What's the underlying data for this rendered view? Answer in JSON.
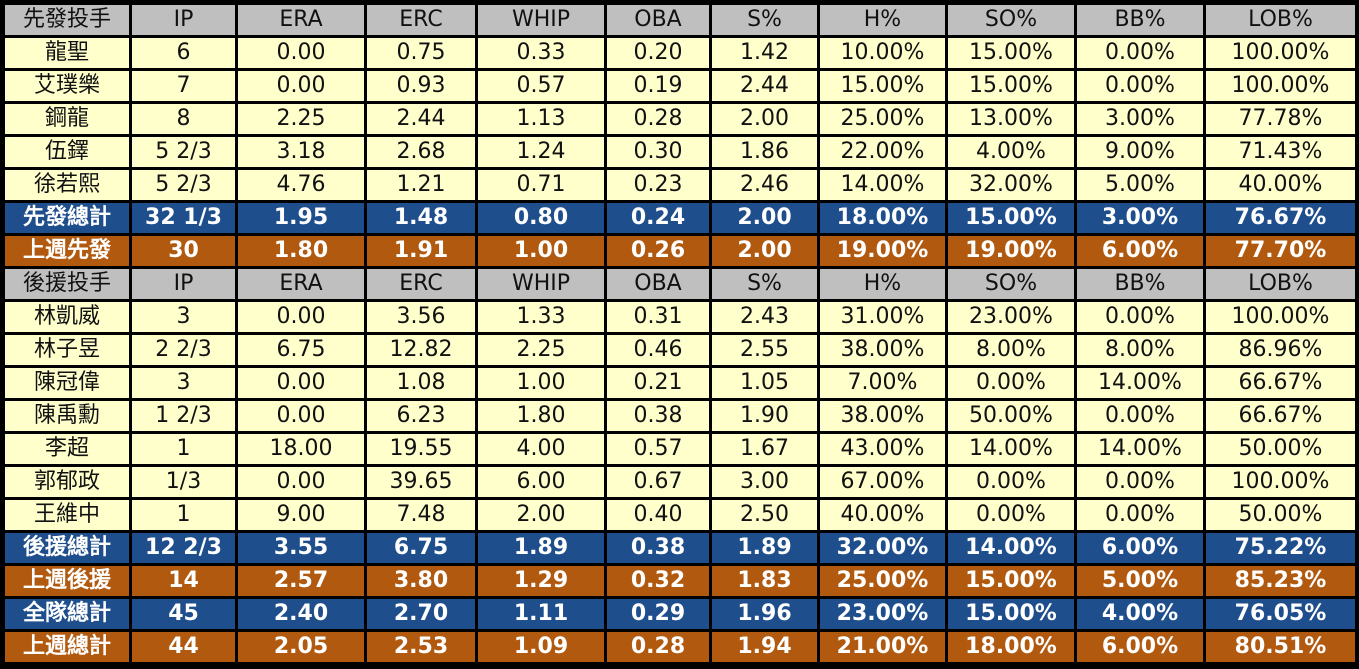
{
  "colors": {
    "header_bg": "#bfbfbf",
    "data_bg": "#ffffcc",
    "total_bg": "#1f4e8c",
    "last_week_bg": "#b15a0f",
    "frame": "#000000"
  },
  "table": {
    "rows": [
      {
        "type": "hdr",
        "cells": [
          "先發投手",
          "IP",
          "ERA",
          "ERC",
          "WHIP",
          "OBA",
          "S%",
          "H%",
          "SO%",
          "BB%",
          "LOB%"
        ]
      },
      {
        "type": "dat",
        "cells": [
          "龍聖",
          "6",
          "0.00",
          "0.75",
          "0.33",
          "0.20",
          "1.42",
          "10.00%",
          "15.00%",
          "0.00%",
          "100.00%"
        ]
      },
      {
        "type": "dat",
        "cells": [
          "艾璞樂",
          "7",
          "0.00",
          "0.93",
          "0.57",
          "0.19",
          "2.44",
          "15.00%",
          "15.00%",
          "0.00%",
          "100.00%"
        ]
      },
      {
        "type": "dat",
        "cells": [
          "鋼龍",
          "8",
          "2.25",
          "2.44",
          "1.13",
          "0.28",
          "2.00",
          "25.00%",
          "13.00%",
          "3.00%",
          "77.78%"
        ]
      },
      {
        "type": "dat",
        "cells": [
          "伍鐸",
          "5 2/3",
          "3.18",
          "2.68",
          "1.24",
          "0.30",
          "1.86",
          "22.00%",
          "4.00%",
          "9.00%",
          "71.43%"
        ]
      },
      {
        "type": "dat",
        "cells": [
          "徐若熙",
          "5 2/3",
          "4.76",
          "1.21",
          "0.71",
          "0.23",
          "2.46",
          "14.00%",
          "32.00%",
          "5.00%",
          "40.00%"
        ]
      },
      {
        "type": "blue",
        "cells": [
          "先發總計",
          "32 1/3",
          "1.95",
          "1.48",
          "0.80",
          "0.24",
          "2.00",
          "18.00%",
          "15.00%",
          "3.00%",
          "76.67%"
        ]
      },
      {
        "type": "orange",
        "cells": [
          "上週先發",
          "30",
          "1.80",
          "1.91",
          "1.00",
          "0.26",
          "2.00",
          "19.00%",
          "19.00%",
          "6.00%",
          "77.70%"
        ]
      },
      {
        "type": "hdr",
        "cells": [
          "後援投手",
          "IP",
          "ERA",
          "ERC",
          "WHIP",
          "OBA",
          "S%",
          "H%",
          "SO%",
          "BB%",
          "LOB%"
        ]
      },
      {
        "type": "dat",
        "cells": [
          "林凱威",
          "3",
          "0.00",
          "3.56",
          "1.33",
          "0.31",
          "2.43",
          "31.00%",
          "23.00%",
          "0.00%",
          "100.00%"
        ]
      },
      {
        "type": "dat",
        "cells": [
          "林子昱",
          "2 2/3",
          "6.75",
          "12.82",
          "2.25",
          "0.46",
          "2.55",
          "38.00%",
          "8.00%",
          "8.00%",
          "86.96%"
        ]
      },
      {
        "type": "dat",
        "cells": [
          "陳冠偉",
          "3",
          "0.00",
          "1.08",
          "1.00",
          "0.21",
          "1.05",
          "7.00%",
          "0.00%",
          "14.00%",
          "66.67%"
        ]
      },
      {
        "type": "dat",
        "cells": [
          "陳禹勳",
          "1 2/3",
          "0.00",
          "6.23",
          "1.80",
          "0.38",
          "1.90",
          "38.00%",
          "50.00%",
          "0.00%",
          "66.67%"
        ]
      },
      {
        "type": "dat",
        "cells": [
          "李超",
          "1",
          "18.00",
          "19.55",
          "4.00",
          "0.57",
          "1.67",
          "43.00%",
          "14.00%",
          "14.00%",
          "50.00%"
        ]
      },
      {
        "type": "dat",
        "cells": [
          "郭郁政",
          "1/3",
          "0.00",
          "39.65",
          "6.00",
          "0.67",
          "3.00",
          "67.00%",
          "0.00%",
          "0.00%",
          "100.00%"
        ]
      },
      {
        "type": "dat",
        "cells": [
          "王維中",
          "1",
          "9.00",
          "7.48",
          "2.00",
          "0.40",
          "2.50",
          "40.00%",
          "0.00%",
          "0.00%",
          "50.00%"
        ]
      },
      {
        "type": "blue",
        "cells": [
          "後援總計",
          "12 2/3",
          "3.55",
          "6.75",
          "1.89",
          "0.38",
          "1.89",
          "32.00%",
          "14.00%",
          "6.00%",
          "75.22%"
        ]
      },
      {
        "type": "orange",
        "cells": [
          "上週後援",
          "14",
          "2.57",
          "3.80",
          "1.29",
          "0.32",
          "1.83",
          "25.00%",
          "15.00%",
          "5.00%",
          "85.23%"
        ]
      },
      {
        "type": "blue",
        "cells": [
          "全隊總計",
          "45",
          "2.40",
          "2.70",
          "1.11",
          "0.29",
          "1.96",
          "23.00%",
          "15.00%",
          "4.00%",
          "76.05%"
        ]
      },
      {
        "type": "orange",
        "cells": [
          "上週總計",
          "44",
          "2.05",
          "2.53",
          "1.09",
          "0.28",
          "1.94",
          "21.00%",
          "18.00%",
          "6.00%",
          "80.51%"
        ]
      }
    ]
  }
}
